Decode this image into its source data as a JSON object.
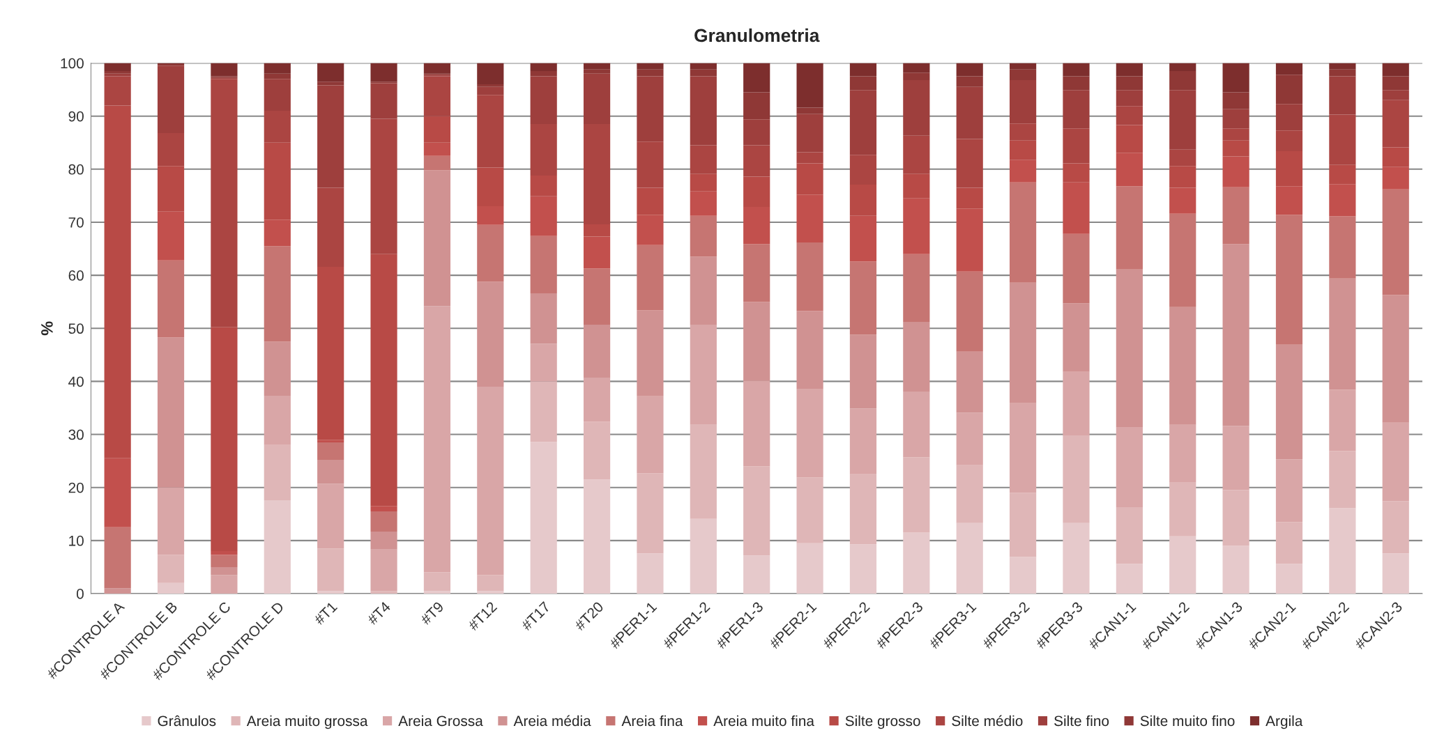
{
  "chart_data": {
    "type": "bar",
    "title": "Granulometria",
    "ylabel": "%",
    "stacked": true,
    "categories": [
      "#CONTROLE A",
      "#CONTROLE B",
      "#CONTROLE C",
      "#CONTROLE D",
      "#T1",
      "#T4",
      "#T9",
      "#T12",
      "#T17",
      "#T20",
      "#PER1-1",
      "#PER1-2",
      "#PER1-3",
      "#PER2-1",
      "#PER2-2",
      "#PER2-3",
      "#PER3-1",
      "#PER3-2",
      "#PER3-3",
      "#CAN1-1",
      "#CAN1-2",
      "#CAN1-3",
      "#CAN2-1",
      "#CAN2-2",
      "#CAN2-3"
    ],
    "series": [
      {
        "name": "Grânulos",
        "color": "#e6c9cb",
        "values": [
          0,
          2,
          0,
          17.6,
          0.5,
          0,
          0.5,
          0.5,
          28.6,
          21.5,
          7.6,
          14.1,
          7.2,
          9.5,
          9.3,
          11.5,
          13.3,
          6.9,
          13.3,
          5.6,
          10.8,
          9,
          5.6,
          16.1,
          7.6
        ]
      },
      {
        "name": "Areia muito grossa",
        "color": "#dfb6b7",
        "values": [
          0,
          5.3,
          0,
          10.4,
          8,
          0.5,
          3.5,
          3,
          11.4,
          10.9,
          15.1,
          17.7,
          16.8,
          12.4,
          13.2,
          14.2,
          10.9,
          12.1,
          16.4,
          10.7,
          10.1,
          10.5,
          7.9,
          10.8,
          9.8
        ]
      },
      {
        "name": "Areia Grossa",
        "color": "#d9a6a7",
        "values": [
          0,
          12.7,
          3.5,
          9.3,
          12.2,
          7.8,
          50.2,
          35.5,
          7.1,
          8.3,
          14.5,
          18.9,
          16.1,
          16.6,
          12.4,
          12.4,
          9.9,
          16.9,
          12.1,
          15,
          10.9,
          12.1,
          11.8,
          11.5,
          14.8
        ]
      },
      {
        "name": "Areia média",
        "color": "#d09292",
        "values": [
          1,
          28.3,
          1.5,
          10.2,
          4.5,
          3.4,
          25.6,
          19.8,
          9.5,
          10,
          16.2,
          12.8,
          14.9,
          14.8,
          13.9,
          13.1,
          11.5,
          22.7,
          12.9,
          29.8,
          22.2,
          34.3,
          21.6,
          21,
          24.1
        ]
      },
      {
        "name": "Areia fina",
        "color": "#c67572",
        "values": [
          11.5,
          14.5,
          2.3,
          18,
          3.3,
          3.8,
          2.7,
          10.7,
          10.8,
          10.6,
          12.3,
          7.7,
          10.9,
          12.9,
          13.8,
          12.8,
          15.1,
          18.9,
          13.1,
          15.7,
          17.6,
          10.7,
          24.5,
          11.7,
          19.9
        ]
      },
      {
        "name": "Areia muito fina",
        "color": "#c2504d",
        "values": [
          13,
          9.2,
          0.7,
          5,
          0.5,
          1,
          2.5,
          3.5,
          7.5,
          6,
          5.7,
          4.6,
          7,
          9,
          8.6,
          10.5,
          11.9,
          4.2,
          9.7,
          6.3,
          4.9,
          5.8,
          5.4,
          6.1,
          4.2
        ]
      },
      {
        "name": "Silte grosso",
        "color": "#b84a46",
        "values": [
          66.5,
          8.6,
          42.2,
          14.5,
          32.6,
          47.5,
          5,
          7.3,
          3.9,
          2.3,
          5.1,
          3.3,
          5.7,
          5.9,
          5.9,
          4.6,
          3.9,
          3.7,
          3.6,
          5.2,
          4.1,
          3,
          6.6,
          3.6,
          3.7
        ]
      },
      {
        "name": "Silte médio",
        "color": "#ab4542",
        "values": [
          5.5,
          6.2,
          46.8,
          6,
          14.9,
          25.5,
          7.5,
          13.7,
          9.7,
          18.9,
          8.7,
          5.4,
          5.9,
          2.1,
          5.6,
          7.2,
          9.2,
          3.2,
          6.6,
          3.6,
          3.1,
          2.3,
          3.9,
          9.5,
          8.9
        ]
      },
      {
        "name": "Silte fino",
        "color": "#9e3f3d",
        "values": [
          0.5,
          12.7,
          0.2,
          6,
          19.3,
          6.7,
          0.3,
          1.5,
          9,
          9.5,
          12.3,
          13,
          4.9,
          7.2,
          12.2,
          10.5,
          9.8,
          8.2,
          7.2,
          3,
          11.2,
          3.6,
          5,
          7.2,
          1.9
        ]
      },
      {
        "name": "Silte muito fino",
        "color": "#8f3836",
        "values": [
          0.5,
          0.3,
          0.3,
          1,
          0.7,
          0.3,
          0.2,
          0.5,
          1,
          0.8,
          1.3,
          1.3,
          5.1,
          1.2,
          2.6,
          1.4,
          2,
          2,
          2.6,
          2.6,
          3.6,
          3.2,
          5.5,
          1.3,
          2.6
        ]
      },
      {
        "name": "Argila",
        "color": "#7d2e2d",
        "values": [
          1.5,
          0.2,
          2.5,
          2,
          3.5,
          3.5,
          2,
          4,
          1.5,
          1.2,
          1.2,
          1.2,
          5.5,
          8.4,
          2.5,
          1.8,
          2.5,
          1.2,
          2.5,
          2.5,
          1.5,
          5.5,
          2.2,
          1.2,
          2.5
        ]
      }
    ],
    "ylim": [
      0,
      100
    ],
    "yticks": [
      0,
      10,
      20,
      30,
      40,
      50,
      60,
      70,
      80,
      90,
      100
    ],
    "grid": "y",
    "legend": "bottom"
  }
}
